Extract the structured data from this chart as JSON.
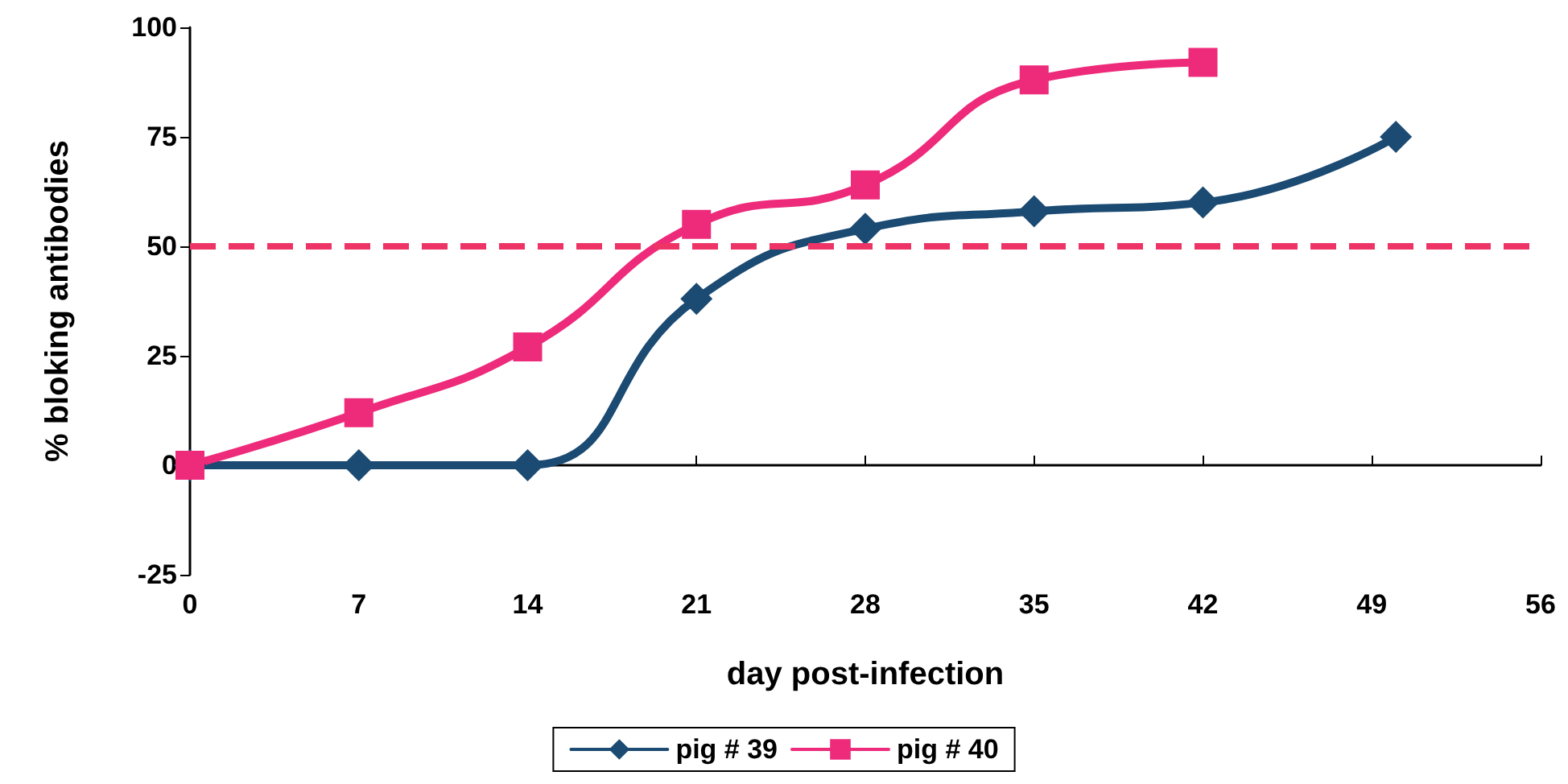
{
  "chart_data": {
    "type": "line",
    "xlabel": "day post-infection",
    "ylabel": "% bloking antibodies",
    "xlim": [
      0,
      56
    ],
    "xticks": [
      0,
      7,
      14,
      21,
      28,
      35,
      42,
      49,
      56
    ],
    "ylim": [
      -25,
      100
    ],
    "yticks": [
      -25,
      0,
      25,
      50,
      75,
      100
    ],
    "grid": false,
    "legend": "bottom",
    "line_style": "solid",
    "series": [
      {
        "name": "pig # 39",
        "color": "#1b4a72",
        "marker": "diamond",
        "x": [
          0,
          7,
          14,
          21,
          28,
          35,
          42,
          50
        ],
        "values": [
          0,
          0,
          0,
          38,
          54,
          58,
          60,
          75
        ]
      },
      {
        "name": "pig # 40",
        "color": "#ee2a7b",
        "marker": "square",
        "x": [
          0,
          7,
          14,
          21,
          28,
          35,
          42
        ],
        "values": [
          0,
          12,
          27,
          55,
          64,
          88,
          92
        ]
      }
    ],
    "ref_lines": [
      {
        "axis": "y",
        "value": 50,
        "color": "#ee3366",
        "line_style": "dashed"
      }
    ]
  }
}
